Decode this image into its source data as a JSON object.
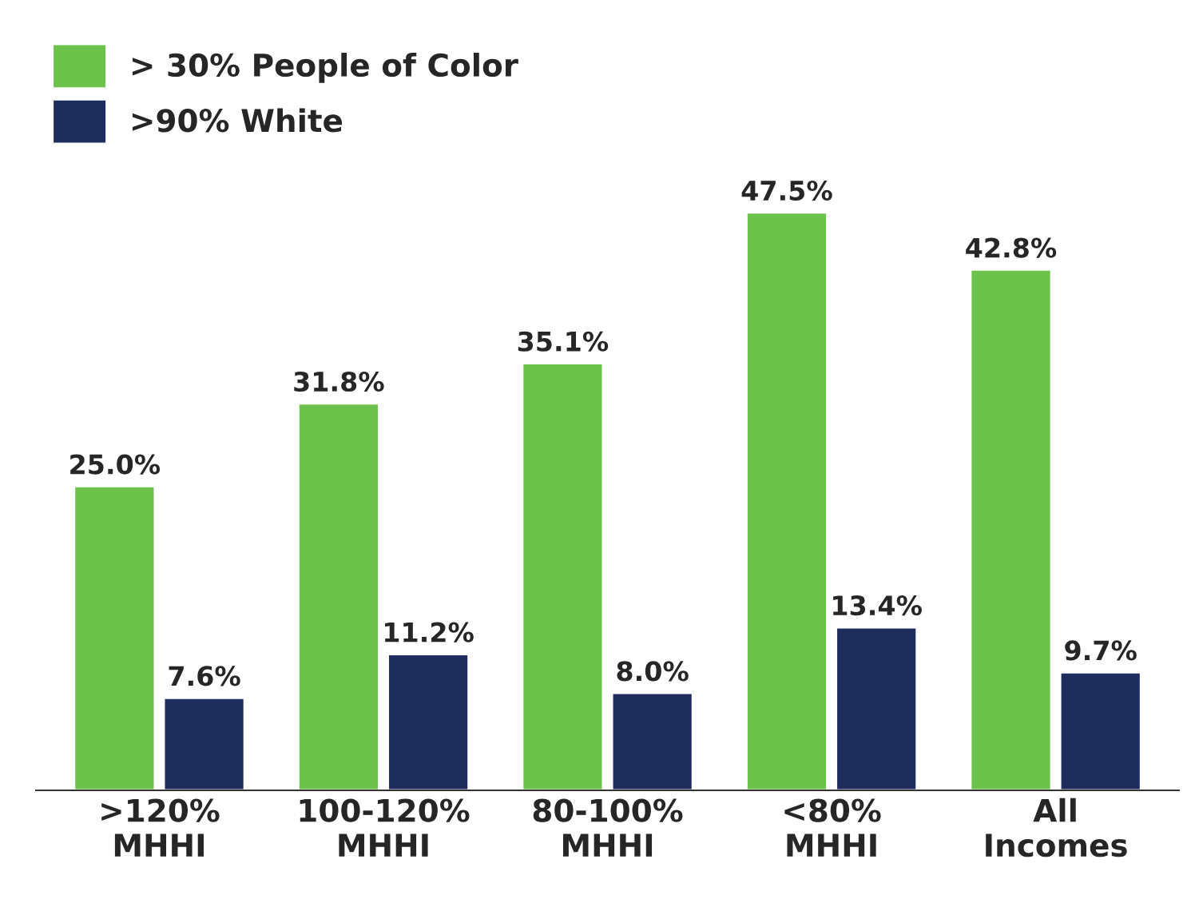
{
  "chart_data": {
    "type": "bar",
    "categories": [
      ">120%\nMHHI",
      "100-120%\nMHHI",
      "80-100%\nMHHI",
      "<80%\nMHHI",
      "All\nIncomes"
    ],
    "series": [
      {
        "name": "> 30% People of Color",
        "color": "#6cc24a",
        "values": [
          25.0,
          31.8,
          35.1,
          47.5,
          42.8
        ],
        "value_labels": [
          "25.0%",
          "31.8%",
          "35.1%",
          "47.5%",
          "42.8%"
        ]
      },
      {
        "name": ">90% White",
        "color": "#1f2d5c",
        "values": [
          7.6,
          11.2,
          8.0,
          13.4,
          9.7
        ],
        "value_labels": [
          "7.6%",
          "11.2%",
          "8.0%",
          "13.4%",
          "9.7%"
        ]
      }
    ],
    "legend": "top left",
    "grid": false,
    "tick_labels": "x"
  }
}
